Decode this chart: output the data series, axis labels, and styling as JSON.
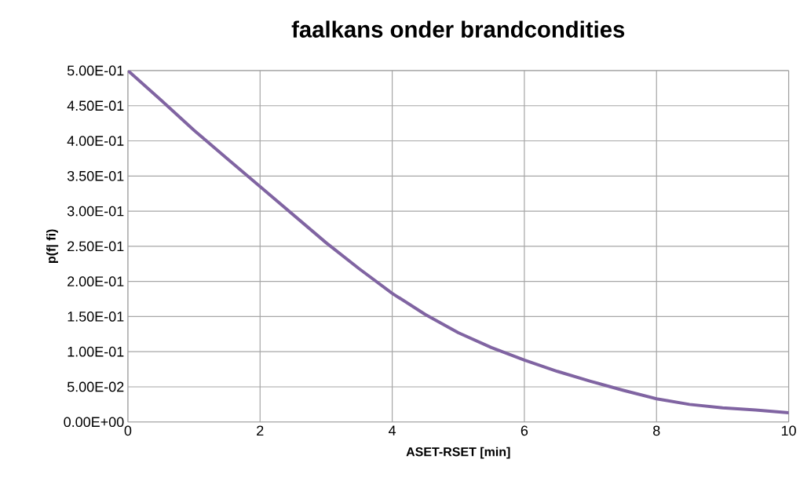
{
  "chart_data": {
    "type": "line",
    "title": "faalkans onder brandcondities",
    "xlabel": "ASET-RSET [min]",
    "ylabel": "p(f| fi)",
    "x": [
      0,
      0.5,
      1,
      1.5,
      2,
      2.5,
      3,
      3.5,
      4,
      4.5,
      5,
      5.5,
      6,
      6.5,
      7,
      7.5,
      8,
      8.5,
      9,
      9.5,
      10
    ],
    "series": [
      {
        "color": "#8064a2",
        "values": [
          0.5,
          0.458,
          0.415,
          0.375,
          0.335,
          0.295,
          0.255,
          0.218,
          0.183,
          0.153,
          0.127,
          0.106,
          0.088,
          0.072,
          0.058,
          0.045,
          0.033,
          0.025,
          0.02,
          0.017,
          0.013
        ]
      }
    ],
    "xlim": [
      0,
      10
    ],
    "xticks": [
      0,
      2,
      4,
      6,
      8,
      10
    ],
    "ylim": [
      0,
      0.5
    ],
    "yticks": [
      {
        "value": 0,
        "label": "0.00E+00"
      },
      {
        "value": 0.05,
        "label": "5.00E-02"
      },
      {
        "value": 0.1,
        "label": "1.00E-01"
      },
      {
        "value": 0.15,
        "label": "1.50E-01"
      },
      {
        "value": 0.2,
        "label": "2.00E-01"
      },
      {
        "value": 0.25,
        "label": "2.50E-01"
      },
      {
        "value": 0.3,
        "label": "3.00E-01"
      },
      {
        "value": 0.35,
        "label": "3.50E-01"
      },
      {
        "value": 0.4,
        "label": "4.00E-01"
      },
      {
        "value": 0.45,
        "label": "4.50E-01"
      },
      {
        "value": 0.5,
        "label": "5.00E-01"
      }
    ],
    "grid": true,
    "marker": "none",
    "line_style": "solid"
  }
}
